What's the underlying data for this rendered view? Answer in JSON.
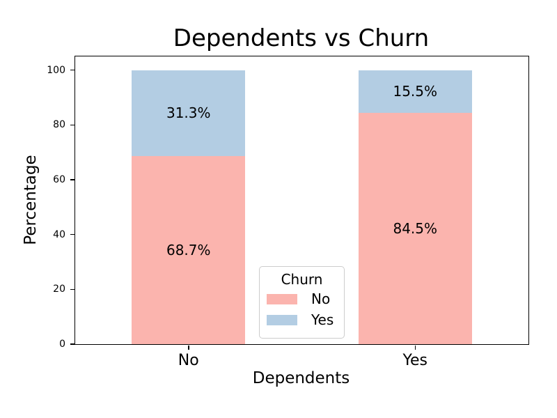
{
  "figure": {
    "title": "Dependents vs Churn",
    "xlabel": "Dependents",
    "ylabel": "Percentage"
  },
  "legend": {
    "title": "Churn",
    "items": [
      {
        "label": "No",
        "color": "#fbb4ae"
      },
      {
        "label": "Yes",
        "color": "#b3cde3"
      }
    ]
  },
  "chart_data": {
    "type": "bar",
    "stacked": true,
    "title": "Dependents vs Churn",
    "xlabel": "Dependents",
    "ylabel": "Percentage",
    "categories": [
      "No",
      "Yes"
    ],
    "series": [
      {
        "name": "No",
        "color": "#fbb4ae",
        "values": [
          68.7,
          31.3
        ],
        "labels": [
          "68.7%",
          "31.3%"
        ]
      },
      {
        "name": "Yes",
        "color": "#b3cde3",
        "values": [
          84.5,
          15.5
        ],
        "labels": [
          "84.5%",
          "15.5%"
        ]
      }
    ],
    "segment_labels_note": "series arrays are per-category: category No -> 68.7% No / 31.3% Yes; category Yes -> 84.5% No / 15.5% Yes",
    "stacks": [
      {
        "category": "No",
        "segments": [
          {
            "name": "No",
            "value": 68.7,
            "label": "68.7%"
          },
          {
            "name": "Yes",
            "value": 31.3,
            "label": "31.3%"
          }
        ]
      },
      {
        "category": "Yes",
        "segments": [
          {
            "name": "No",
            "value": 84.5,
            "label": "84.5%"
          },
          {
            "name": "Yes",
            "value": 15.5,
            "label": "15.5%"
          }
        ]
      }
    ],
    "yticks": [
      0,
      20,
      40,
      60,
      80,
      100
    ],
    "ylim": [
      0,
      105
    ],
    "xlim": [
      -0.5,
      1.5
    ],
    "bar_width": 0.5,
    "grid": false,
    "legend_position": "lower center"
  }
}
